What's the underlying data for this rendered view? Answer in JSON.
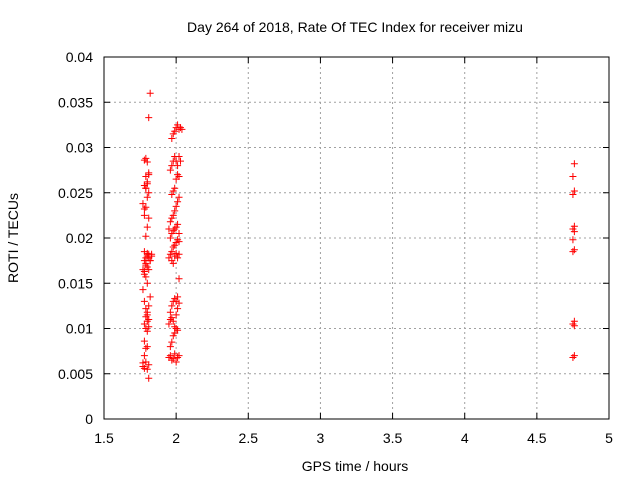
{
  "chart_data": {
    "type": "scatter",
    "title": "Day 264 of 2018, Rate Of TEC Index for receiver mizu",
    "xlabel": "GPS time / hours",
    "ylabel": "ROTI / TECUs",
    "xlim": [
      1.5,
      5
    ],
    "ylim": [
      0,
      0.04
    ],
    "xticks": [
      1.5,
      2,
      2.5,
      3,
      3.5,
      4,
      4.5,
      5
    ],
    "xtick_labels": [
      "1.5",
      "2",
      "2.5",
      "3",
      "3.5",
      "4",
      "4.5",
      "5"
    ],
    "yticks": [
      0,
      0.005,
      0.01,
      0.015,
      0.02,
      0.025,
      0.03,
      0.035,
      0.04
    ],
    "ytick_labels": [
      "0",
      "0.005",
      "0.01",
      "0.015",
      "0.02",
      "0.025",
      "0.03",
      "0.035",
      "0.04"
    ],
    "grid": true,
    "marker": "+",
    "color": "#ff0000",
    "series": [
      {
        "x": [
          1.77,
          1.78,
          1.77,
          1.78,
          1.79,
          1.78,
          1.8,
          1.79,
          1.78,
          1.81,
          1.8,
          1.79,
          1.78,
          1.77,
          1.8,
          1.79,
          1.78,
          1.81,
          1.8,
          1.79,
          1.78,
          1.79,
          1.8,
          1.81,
          1.78,
          1.79,
          1.8,
          1.81,
          1.78,
          1.79,
          1.8,
          1.81,
          1.79,
          1.78,
          1.8,
          1.79,
          1.81,
          1.8,
          1.79,
          1.78,
          1.81,
          1.8,
          1.79,
          1.8,
          1.81,
          1.8,
          1.79,
          1.8,
          1.81,
          1.82,
          1.78,
          1.77,
          1.79,
          1.8,
          1.81,
          1.82,
          1.83,
          1.78,
          1.77,
          1.79,
          1.8,
          1.81,
          1.82,
          1.83,
          1.81,
          1.82,
          1.81
        ],
        "y": [
          0.0058,
          0.0056,
          0.0062,
          0.007,
          0.0078,
          0.0086,
          0.0097,
          0.01,
          0.0105,
          0.011,
          0.0115,
          0.0122,
          0.013,
          0.0143,
          0.015,
          0.0157,
          0.0163,
          0.0165,
          0.0168,
          0.017,
          0.0175,
          0.0178,
          0.018,
          0.0182,
          0.0185,
          0.0202,
          0.0212,
          0.0222,
          0.0232,
          0.0234,
          0.0245,
          0.025,
          0.0255,
          0.0258,
          0.0262,
          0.0268,
          0.0272,
          0.0284,
          0.0288,
          0.0286,
          0.006,
          0.0055,
          0.0063,
          0.008,
          0.0102,
          0.0108,
          0.0113,
          0.0118,
          0.0125,
          0.0135,
          0.016,
          0.0165,
          0.0172,
          0.0183,
          0.0178,
          0.0175,
          0.018,
          0.0225,
          0.0238,
          0.0255,
          0.026,
          0.027,
          0.0175,
          0.0182,
          0.0333,
          0.036,
          0.0045
        ]
      },
      {
        "x": [
          1.95,
          1.96,
          1.97,
          1.98,
          1.99,
          2.0,
          2.01,
          2.02,
          1.96,
          1.97,
          1.98,
          1.99,
          2.0,
          2.01,
          1.95,
          1.96,
          1.97,
          1.98,
          1.99,
          2.0,
          2.01,
          2.02,
          1.96,
          1.97,
          1.98,
          1.99,
          2.0,
          2.01,
          2.02,
          1.95,
          1.96,
          1.97,
          1.98,
          1.99,
          2.0,
          2.01,
          2.02,
          1.96,
          1.97,
          1.98,
          1.99,
          2.0,
          2.01,
          2.02,
          1.97,
          1.98,
          1.99,
          2.0,
          2.01,
          2.02,
          1.95,
          1.96,
          1.97,
          1.98,
          1.99,
          2.0,
          2.01,
          2.02,
          1.97,
          1.98,
          1.99,
          2.0,
          2.01,
          2.02,
          1.96,
          1.97,
          1.98,
          1.99,
          2.0,
          2.01,
          2.02,
          2.03,
          1.97,
          1.98,
          1.99,
          2.0,
          2.01,
          2.02,
          2.03,
          2.04
        ],
        "y": [
          0.0068,
          0.007,
          0.0065,
          0.0067,
          0.0072,
          0.0063,
          0.0068,
          0.007,
          0.008,
          0.0085,
          0.0092,
          0.0095,
          0.01,
          0.0098,
          0.0105,
          0.011,
          0.0112,
          0.0108,
          0.0102,
          0.0115,
          0.0122,
          0.0128,
          0.0118,
          0.0125,
          0.013,
          0.0133,
          0.013,
          0.0135,
          0.0155,
          0.0178,
          0.0182,
          0.0185,
          0.019,
          0.0192,
          0.0195,
          0.0198,
          0.0196,
          0.02,
          0.0205,
          0.0208,
          0.021,
          0.0212,
          0.0215,
          0.0205,
          0.0175,
          0.0172,
          0.018,
          0.0183,
          0.0178,
          0.0182,
          0.021,
          0.0218,
          0.0222,
          0.0225,
          0.023,
          0.0235,
          0.024,
          0.0245,
          0.0248,
          0.0252,
          0.0255,
          0.0265,
          0.027,
          0.0268,
          0.0275,
          0.028,
          0.0285,
          0.029,
          0.0285,
          0.028,
          0.029,
          0.0285,
          0.031,
          0.0315,
          0.0318,
          0.0322,
          0.0325,
          0.032,
          0.0322,
          0.032
        ]
      },
      {
        "x": [
          4.75,
          4.76,
          4.75,
          4.76,
          4.75,
          4.76,
          4.75,
          4.76,
          4.75,
          4.76,
          4.75,
          4.76,
          4.75,
          4.76,
          4.76
        ],
        "y": [
          0.0068,
          0.007,
          0.0105,
          0.0108,
          0.0185,
          0.0187,
          0.0198,
          0.0207,
          0.021,
          0.0213,
          0.0248,
          0.0252,
          0.0268,
          0.0282,
          0.0103
        ]
      }
    ]
  }
}
